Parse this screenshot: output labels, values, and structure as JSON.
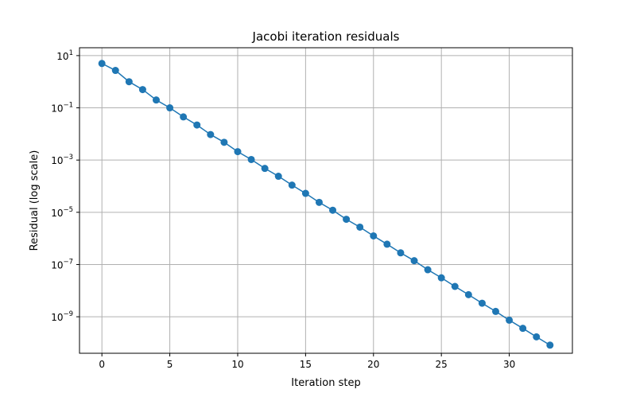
{
  "chart_data": {
    "type": "line",
    "title": "Jacobi iteration residuals",
    "xlabel": "Iteration step",
    "ylabel": "Residual (log scale)",
    "xlim": [
      -1.65,
      34.65
    ],
    "ylim": [
      4e-11,
      20
    ],
    "yscale": "log",
    "grid": true,
    "x_ticks": [
      0,
      5,
      10,
      15,
      20,
      25,
      30
    ],
    "x_tick_labels": [
      "0",
      "5",
      "10",
      "15",
      "20",
      "25",
      "30"
    ],
    "y_ticks": [
      10.0,
      0.1,
      0.001,
      1e-05,
      1e-07,
      1e-09
    ],
    "y_tick_labels": [
      {
        "base": "10",
        "exp": "1"
      },
      {
        "base": "10",
        "exp": "−1"
      },
      {
        "base": "10",
        "exp": "−3"
      },
      {
        "base": "10",
        "exp": "−5"
      },
      {
        "base": "10",
        "exp": "−7"
      },
      {
        "base": "10",
        "exp": "−9"
      }
    ],
    "series": [
      {
        "color": "#1f77b4",
        "marker": "circle",
        "x": [
          0,
          1,
          2,
          3,
          4,
          5,
          6,
          7,
          8,
          9,
          10,
          11,
          12,
          13,
          14,
          15,
          16,
          17,
          18,
          19,
          20,
          21,
          22,
          23,
          24,
          25,
          26,
          27,
          28,
          29,
          30,
          31,
          32,
          33
        ],
        "y": [
          5.0,
          2.7,
          1.0,
          0.5,
          0.2,
          0.1,
          0.045,
          0.022,
          0.0095,
          0.0048,
          0.0021,
          0.00105,
          0.00048,
          0.00024,
          0.00011,
          5.3e-05,
          2.4e-05,
          1.2e-05,
          5.4e-06,
          2.7e-06,
          1.25e-06,
          6e-07,
          2.8e-07,
          1.4e-07,
          6.3e-08,
          3.1e-08,
          1.45e-08,
          7e-09,
          3.3e-09,
          1.6e-09,
          7.4e-10,
          3.6e-10,
          1.7e-10,
          8.2e-11
        ]
      }
    ]
  }
}
